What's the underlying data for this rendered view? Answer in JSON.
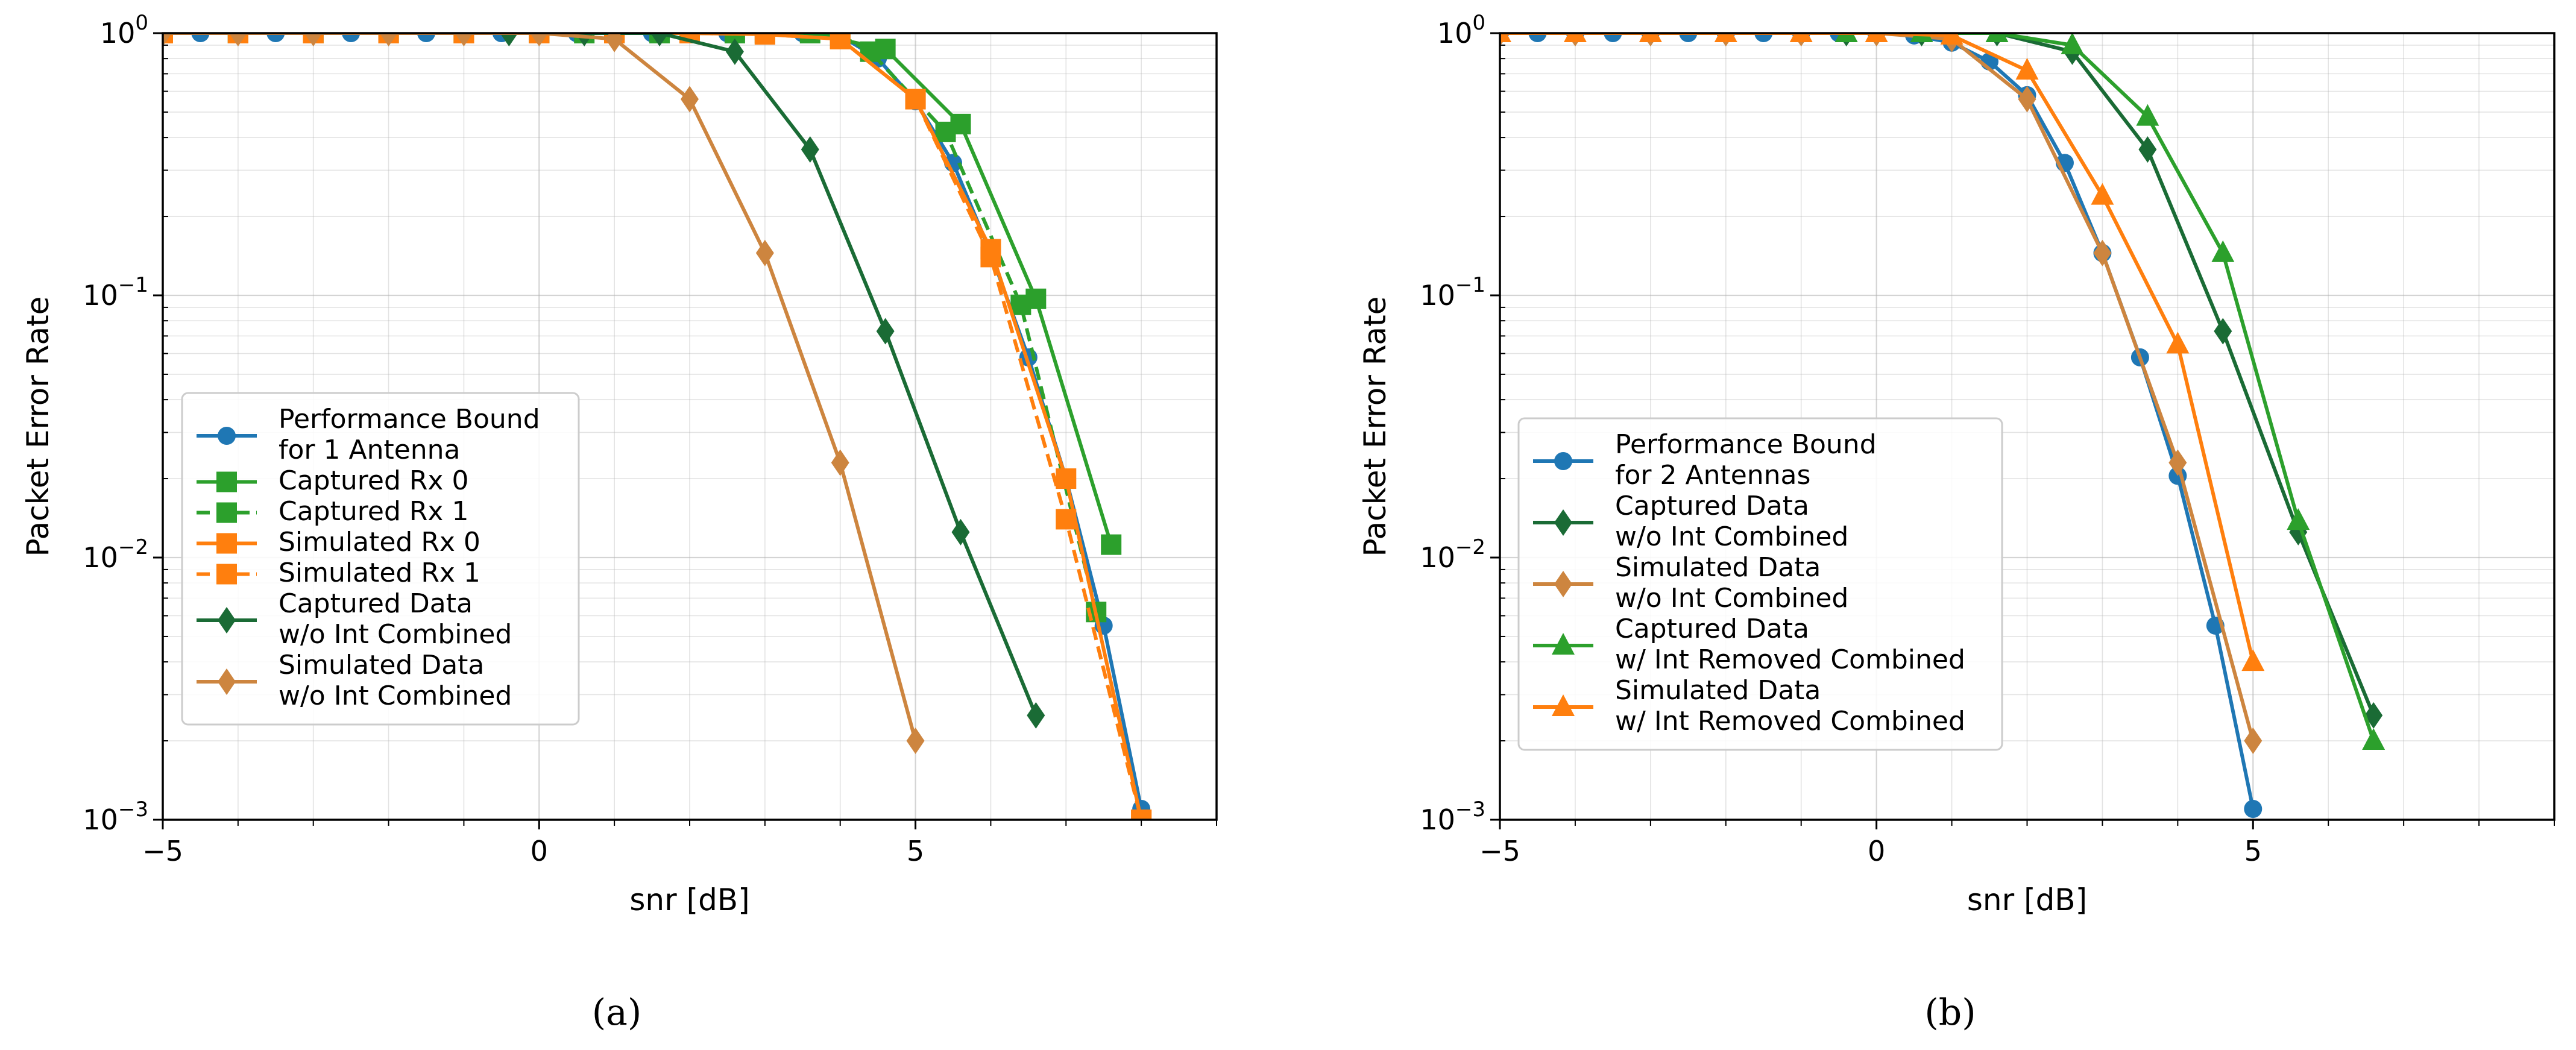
{
  "colors": {
    "blue": "#1f77b4",
    "green": "#2ca02c",
    "orange": "#ff7f0e",
    "dark_green": "#1a6b35",
    "tan": "#cd853f"
  },
  "chart_data": [
    {
      "id": "a",
      "type": "line",
      "caption": "(a)",
      "xlabel": "snr [dB]",
      "ylabel": "Packet Error Rate",
      "xlim": [
        -5,
        9
      ],
      "ylim": [
        0.001,
        1
      ],
      "yscale": "log",
      "grid": true,
      "xticks": [
        -5,
        0,
        5
      ],
      "xtick_labels": [
        "−5",
        "0",
        "5"
      ],
      "yticks": [
        0.001,
        0.01,
        0.1,
        1
      ],
      "ytick_labels": [
        {
          "base": "10",
          "exp": "−3"
        },
        {
          "base": "10",
          "exp": "−2"
        },
        {
          "base": "10",
          "exp": "−1"
        },
        {
          "base": "10",
          "exp": "0"
        }
      ],
      "legend_position": "lower-left",
      "series": [
        {
          "name": "Performance Bound",
          "name2": "for 1 Antenna",
          "color": "#1f77b4",
          "marker": "circle",
          "dash": false,
          "x": [
            -5,
            -4.5,
            -4,
            -3.5,
            -3,
            -2.5,
            -2,
            -1.5,
            -1,
            -0.5,
            0,
            0.5,
            1,
            1.5,
            2,
            2.5,
            3,
            3.5,
            4,
            4.5,
            5,
            5.5,
            6,
            6.5,
            7,
            7.5,
            8
          ],
          "y": [
            1,
            1,
            1,
            1,
            1,
            1,
            1,
            1,
            1,
            1,
            1,
            1,
            1,
            1,
            1,
            1,
            1,
            1,
            0.98,
            0.8,
            0.55,
            0.32,
            0.145,
            0.058,
            0.02,
            0.0055,
            0.0011
          ]
        },
        {
          "name": "Captured Rx 0",
          "name2": "",
          "color": "#2ca02c",
          "marker": "square",
          "dash": false,
          "x": [
            -5,
            -4,
            -3,
            -2,
            -1,
            0,
            0.6,
            1.6,
            2.6,
            3.6,
            4.6,
            5.6,
            6.6,
            7.6
          ],
          "y": [
            1,
            1,
            1,
            1,
            1,
            1,
            1,
            1,
            1,
            1,
            0.87,
            0.45,
            0.097,
            0.0112
          ]
        },
        {
          "name": "Captured Rx 1",
          "name2": "",
          "color": "#2ca02c",
          "marker": "square",
          "dash": true,
          "x": [
            -5,
            -4,
            -3,
            -2,
            -1,
            0,
            1,
            2,
            3,
            4,
            4.4,
            5.4,
            6.4,
            7.4
          ],
          "y": [
            1,
            1,
            1,
            1,
            1,
            1,
            1,
            1,
            1,
            0.98,
            0.85,
            0.42,
            0.092,
            0.0062
          ]
        },
        {
          "name": "Simulated Rx 0",
          "name2": "",
          "color": "#ff7f0e",
          "marker": "square",
          "dash": false,
          "x": [
            -5,
            -4,
            -3,
            -2,
            -1,
            0,
            1,
            2,
            3,
            4,
            5,
            6,
            7,
            8
          ],
          "y": [
            1,
            1,
            1,
            1,
            1,
            1,
            1,
            1,
            0.99,
            0.95,
            0.56,
            0.15,
            0.02,
            0.001
          ]
        },
        {
          "name": "Simulated Rx 1",
          "name2": "",
          "color": "#ff7f0e",
          "marker": "square",
          "dash": true,
          "x": [
            -5,
            -4,
            -3,
            -2,
            -1,
            0,
            1,
            2,
            3,
            4,
            5,
            6,
            7,
            8
          ],
          "y": [
            1,
            1,
            1,
            1,
            1,
            1,
            1,
            1,
            0.99,
            0.95,
            0.56,
            0.14,
            0.014,
            0.001
          ]
        },
        {
          "name": "Captured Data",
          "name2": "w/o Int Combined",
          "color": "#1a6b35",
          "marker": "diamond",
          "dash": false,
          "x": [
            -0.4,
            0.6,
            1.6,
            2.6,
            3.6,
            4.6,
            5.6,
            6.6
          ],
          "y": [
            1,
            1,
            1,
            0.85,
            0.36,
            0.073,
            0.0125,
            0.0025
          ]
        },
        {
          "name": "Simulated Data",
          "name2": "w/o Int Combined",
          "color": "#cd853f",
          "marker": "diamond",
          "dash": false,
          "x": [
            -5,
            -4,
            -3,
            -2,
            -1,
            0,
            1,
            2,
            3,
            4,
            5
          ],
          "y": [
            1,
            1,
            1,
            1,
            1,
            1,
            0.95,
            0.56,
            0.145,
            0.023,
            0.002
          ]
        }
      ]
    },
    {
      "id": "b",
      "type": "line",
      "caption": "(b)",
      "xlabel": "snr [dB]",
      "ylabel": "Packet Error Rate",
      "xlim": [
        -5,
        9
      ],
      "ylim": [
        0.001,
        1
      ],
      "yscale": "log",
      "grid": true,
      "xticks": [
        -5,
        0,
        5
      ],
      "xtick_labels": [
        "−5",
        "0",
        "5"
      ],
      "yticks": [
        0.001,
        0.01,
        0.1,
        1
      ],
      "ytick_labels": [
        {
          "base": "10",
          "exp": "−3"
        },
        {
          "base": "10",
          "exp": "−2"
        },
        {
          "base": "10",
          "exp": "−1"
        },
        {
          "base": "10",
          "exp": "0"
        }
      ],
      "legend_position": "lower-left",
      "series": [
        {
          "name": "Performance Bound",
          "name2": "for 2 Antennas",
          "color": "#1f77b4",
          "marker": "circle",
          "dash": false,
          "x": [
            -5,
            -4.5,
            -4,
            -3.5,
            -3,
            -2.5,
            -2,
            -1.5,
            -1,
            -0.5,
            0,
            0.5,
            1,
            1.5,
            2,
            2.5,
            3,
            3.5,
            4,
            4.5,
            5
          ],
          "y": [
            1,
            1,
            1,
            1,
            1,
            1,
            1,
            1,
            1,
            1,
            1,
            0.98,
            0.92,
            0.78,
            0.58,
            0.32,
            0.145,
            0.058,
            0.0205,
            0.0055,
            0.0011
          ]
        },
        {
          "name": "Captured Data",
          "name2": "w/o Int Combined",
          "color": "#1a6b35",
          "marker": "diamond",
          "dash": false,
          "x": [
            -0.4,
            0.6,
            1.6,
            2.6,
            3.6,
            4.6,
            5.6,
            6.6
          ],
          "y": [
            1,
            1,
            1,
            0.85,
            0.36,
            0.073,
            0.0125,
            0.0025
          ]
        },
        {
          "name": "Simulated Data",
          "name2": "w/o Int Combined",
          "color": "#cd853f",
          "marker": "diamond",
          "dash": false,
          "x": [
            -5,
            -4,
            -3,
            -2,
            -1,
            0,
            1,
            2,
            3,
            4,
            5
          ],
          "y": [
            1,
            1,
            1,
            1,
            1,
            1,
            0.95,
            0.56,
            0.145,
            0.023,
            0.002
          ]
        },
        {
          "name": "Captured Data",
          "name2": "w/ Int Removed Combined",
          "color": "#2ca02c",
          "marker": "triangle",
          "dash": false,
          "x": [
            -0.4,
            0.6,
            1.6,
            2.6,
            3.6,
            4.6,
            5.6,
            6.6
          ],
          "y": [
            1,
            1,
            1,
            0.9,
            0.48,
            0.145,
            0.0138,
            0.002
          ]
        },
        {
          "name": "Simulated Data",
          "name2": "w/ Int Removed  Combined",
          "color": "#ff7f0e",
          "marker": "triangle",
          "dash": false,
          "x": [
            -5,
            -4,
            -3,
            -2,
            -1,
            0,
            1,
            2,
            3,
            4,
            5
          ],
          "y": [
            1,
            1,
            1,
            1,
            1,
            1,
            0.98,
            0.72,
            0.24,
            0.065,
            0.004
          ]
        }
      ]
    }
  ]
}
